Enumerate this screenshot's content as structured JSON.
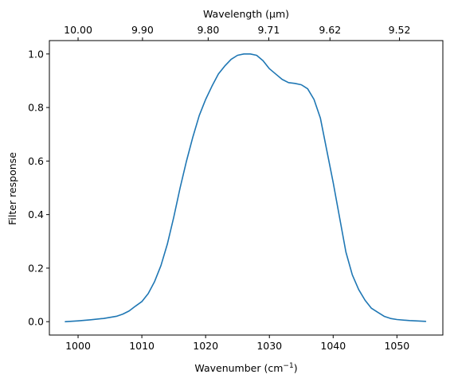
{
  "chart_data": {
    "type": "line",
    "xlabel_text": "Wavenumber (cm",
    "xlabel_sup": "−1",
    "xlabel_close": ")",
    "ylabel": "Filter response",
    "top_xlabel": "Wavelength (μm)",
    "xlim": [
      995.5,
      1057.2
    ],
    "ylim": [
      -0.05,
      1.05
    ],
    "x_ticks": [
      1000,
      1010,
      1020,
      1030,
      1040,
      1050
    ],
    "x_tick_labels": [
      "1000",
      "1010",
      "1020",
      "1030",
      "1040",
      "1050"
    ],
    "y_ticks": [
      0.0,
      0.2,
      0.4,
      0.6,
      0.8,
      1.0
    ],
    "y_tick_labels": [
      "0.0",
      "0.2",
      "0.4",
      "0.6",
      "0.8",
      "1.0"
    ],
    "top_ticks": [
      {
        "wavenumber": 1000.0,
        "label": "10.00"
      },
      {
        "wavenumber": 1010.1,
        "label": "9.90"
      },
      {
        "wavenumber": 1020.4,
        "label": "9.80"
      },
      {
        "wavenumber": 1029.9,
        "label": "9.71"
      },
      {
        "wavenumber": 1039.5,
        "label": "9.62"
      },
      {
        "wavenumber": 1050.4,
        "label": "9.52"
      }
    ],
    "grid": false,
    "series": [
      {
        "color": "#1f77b4",
        "x": [
          998,
          1000,
          1002,
          1004,
          1006,
          1007,
          1008,
          1009,
          1010,
          1011,
          1012,
          1013,
          1014,
          1015,
          1016,
          1017,
          1018,
          1019,
          1020,
          1021,
          1022,
          1023,
          1024,
          1025,
          1026,
          1027,
          1028,
          1029,
          1030,
          1031,
          1032,
          1033,
          1034,
          1035,
          1036,
          1037,
          1038,
          1039,
          1040,
          1041,
          1042,
          1043,
          1044,
          1045,
          1046,
          1047,
          1048,
          1049,
          1050,
          1052,
          1054.5
        ],
        "y": [
          0.0,
          0.003,
          0.007,
          0.012,
          0.02,
          0.028,
          0.04,
          0.058,
          0.075,
          0.105,
          0.15,
          0.21,
          0.29,
          0.39,
          0.5,
          0.6,
          0.69,
          0.77,
          0.83,
          0.88,
          0.925,
          0.955,
          0.98,
          0.995,
          1.0,
          1.0,
          0.995,
          0.975,
          0.945,
          0.925,
          0.905,
          0.893,
          0.89,
          0.885,
          0.87,
          0.83,
          0.76,
          0.64,
          0.52,
          0.39,
          0.26,
          0.175,
          0.12,
          0.08,
          0.05,
          0.035,
          0.02,
          0.012,
          0.008,
          0.004,
          0.001
        ]
      }
    ]
  }
}
